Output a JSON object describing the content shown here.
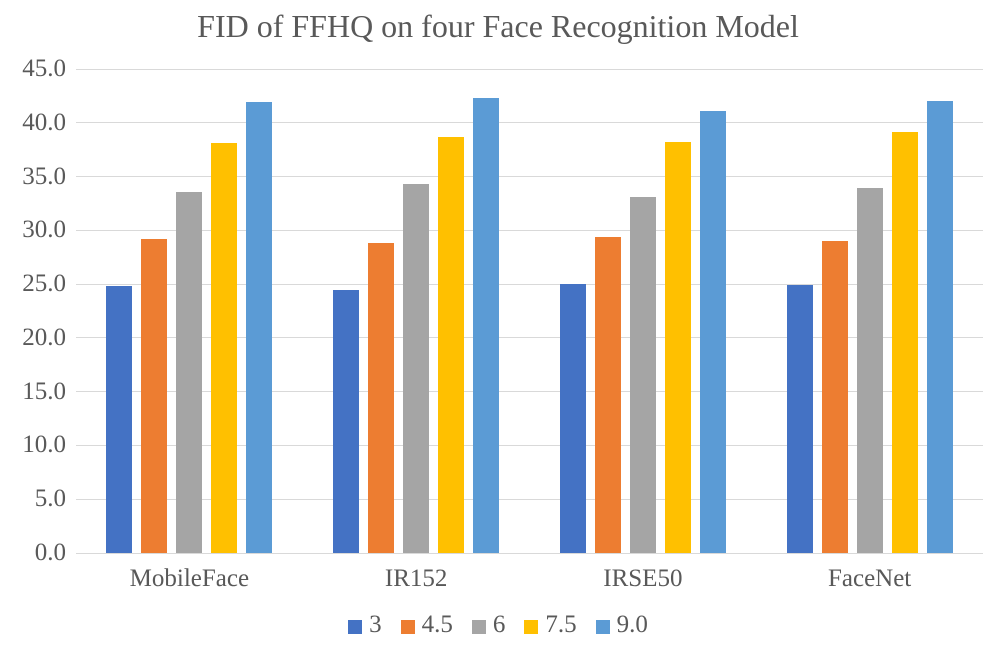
{
  "chart_data": {
    "type": "bar",
    "title": "FID of FFHQ on four Face Recognition Model",
    "categories": [
      "MobileFace",
      "IR152",
      "IRSE50",
      "FaceNet"
    ],
    "series": [
      {
        "name": "3",
        "color": "#4472C4",
        "values": [
          24.8,
          24.5,
          25.0,
          24.9
        ]
      },
      {
        "name": "4.5",
        "color": "#ED7D31",
        "values": [
          29.2,
          28.8,
          29.4,
          29.0
        ]
      },
      {
        "name": "6",
        "color": "#A5A5A5",
        "values": [
          33.6,
          34.3,
          33.1,
          33.9
        ]
      },
      {
        "name": "7.5",
        "color": "#FFC000",
        "values": [
          38.1,
          38.7,
          38.2,
          39.1
        ]
      },
      {
        "name": "9.0",
        "color": "#5B9BD5",
        "values": [
          41.9,
          42.3,
          41.1,
          42.0
        ]
      }
    ],
    "ylim": [
      0,
      45
    ],
    "y_ticks": [
      "45.0",
      "40.0",
      "35.0",
      "30.0",
      "25.0",
      "20.0",
      "15.0",
      "10.0",
      "5.0",
      "0.0"
    ],
    "grid": true,
    "legend_position": "bottom",
    "xlabel": "",
    "ylabel": ""
  },
  "styles": {
    "text_color": "#595959",
    "gridline_color": "#D9D9D9",
    "background": "#FFFFFF"
  }
}
